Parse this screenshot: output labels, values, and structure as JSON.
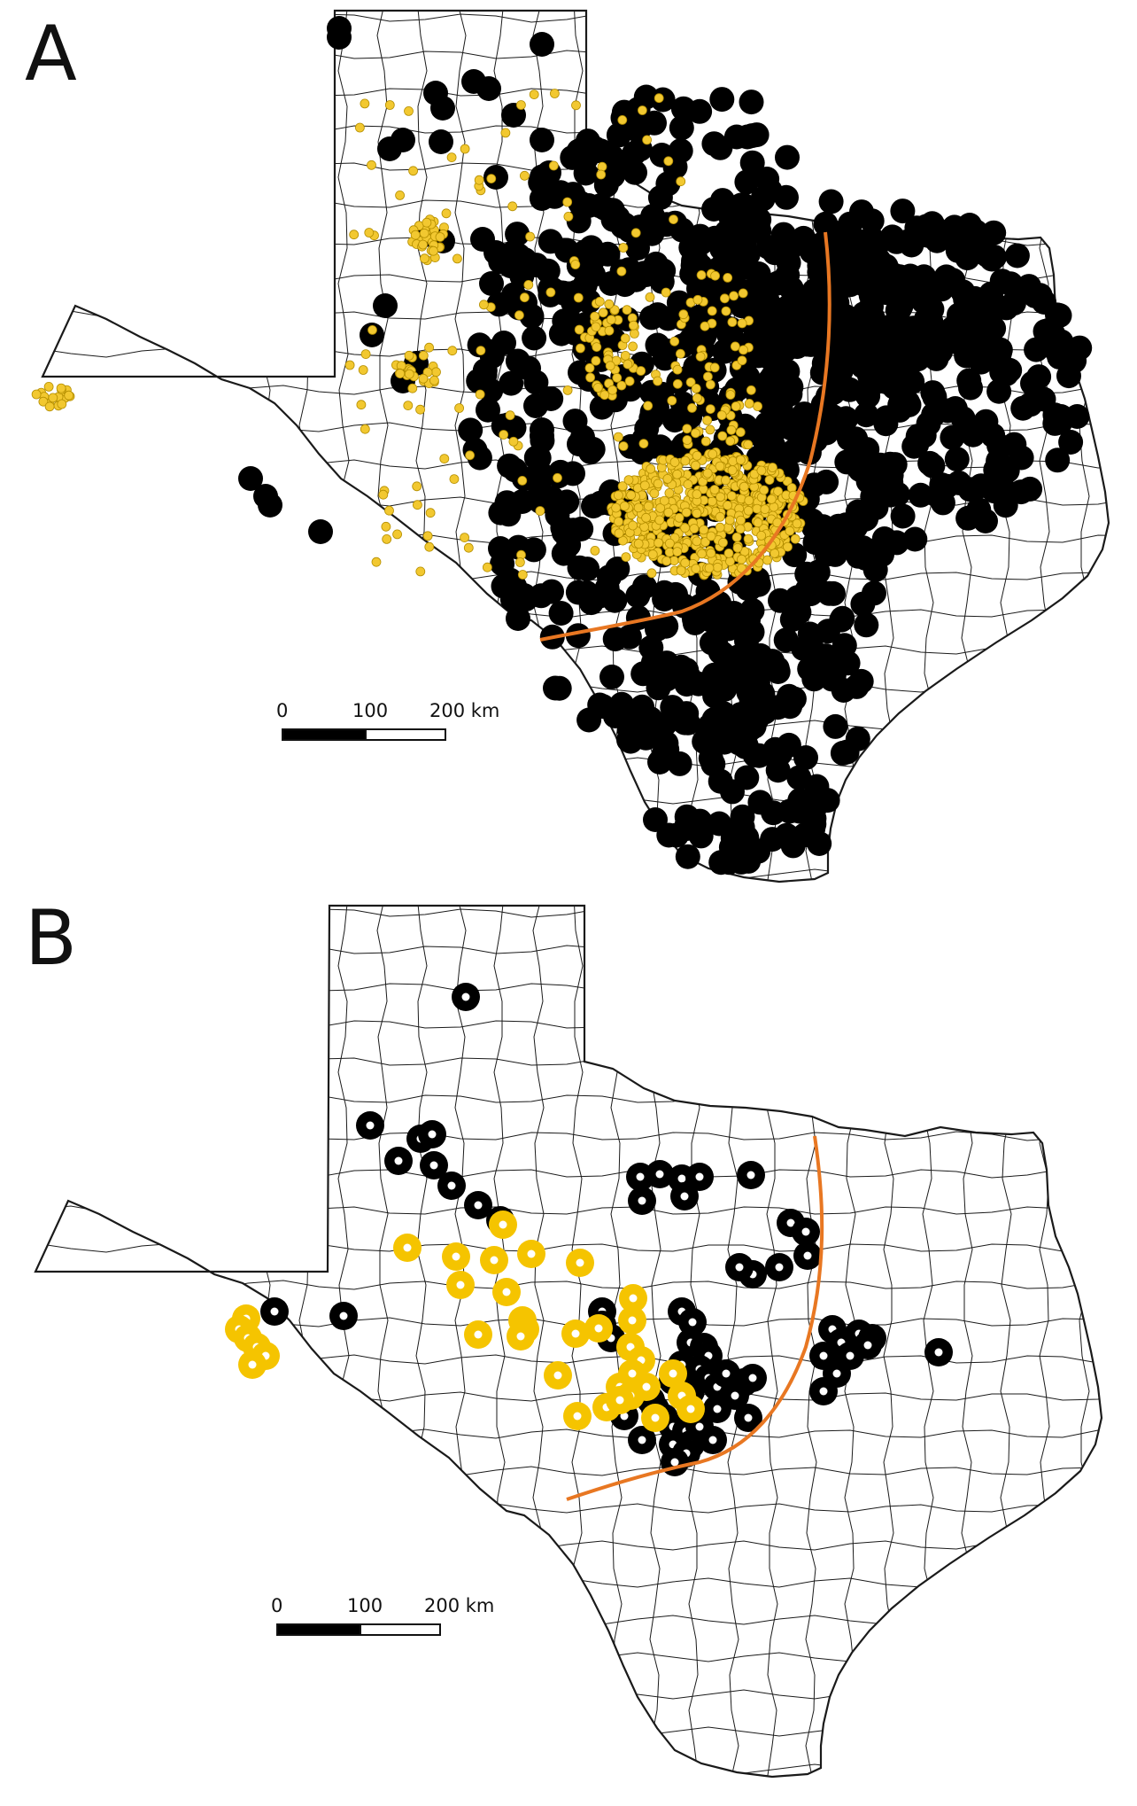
{
  "panels": [
    {
      "letter": "A",
      "scale_bar": {
        "tick_labels": [
          "0",
          "100",
          "200 km"
        ]
      },
      "colors": {
        "outline": "#1a1a1a",
        "black_symbol": "#000000",
        "yellow_symbol": "#f2c830",
        "yellow_stroke": "#b58f00",
        "divider_line": "#e87722"
      }
    },
    {
      "letter": "B",
      "scale_bar": {
        "tick_labels": [
          "0",
          "100",
          "200 km"
        ]
      },
      "colors": {
        "outline": "#1a1a1a",
        "black_symbol": "#000000",
        "yellow_symbol": "#f5c400",
        "divider_line": "#e87722"
      }
    }
  ]
}
